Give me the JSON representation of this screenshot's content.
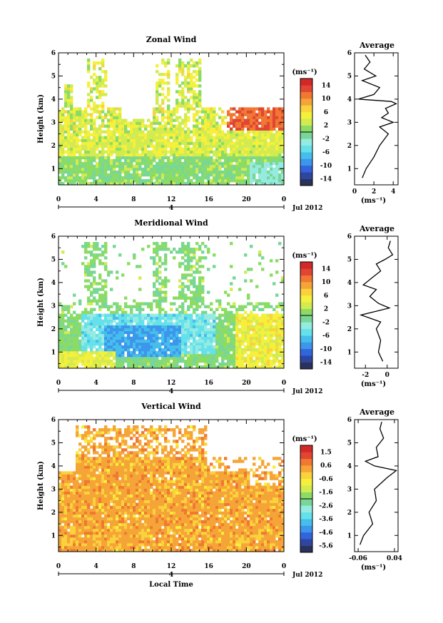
{
  "figure": {
    "month_label": "Jul 2012",
    "day_label": "4",
    "xlabel_bottom": "Local Time",
    "colorbar_unit": "(ms⁻¹)",
    "avg_unit": "(ms⁻¹)",
    "ylabel": "Height (km)",
    "avg_title": "Average"
  },
  "chart_data": [
    {
      "type": "heatmap",
      "title": "Zonal Wind",
      "xlabel": "",
      "ylabel": "Height (km)",
      "xlim": [
        0,
        24
      ],
      "ylim": [
        0.3,
        6
      ],
      "xticks": [
        "0",
        "4",
        "8",
        "12",
        "16",
        "20",
        "0"
      ],
      "yticks": [
        "1",
        "2",
        "3",
        "4",
        "5",
        "6"
      ],
      "colorbar": {
        "ticks": [
          "14",
          "10",
          "6",
          "2",
          "-2",
          "-6",
          "-10",
          "-14"
        ],
        "range": [
          -16,
          16
        ]
      },
      "avg_profile": {
        "title": "Average",
        "xlim": [
          0,
          4.5
        ],
        "xticks": [
          "0",
          "2",
          "4"
        ],
        "height_km": [
          0.6,
          1.0,
          1.5,
          2.0,
          2.5,
          2.8,
          3.0,
          3.2,
          3.4,
          3.6,
          3.8,
          3.9,
          4.0,
          4.2,
          4.5,
          4.8,
          5.0,
          5.3,
          5.6,
          5.9
        ],
        "value_ms": [
          0.8,
          1.2,
          2.0,
          2.6,
          3.5,
          2.6,
          4.0,
          2.8,
          3.5,
          3.2,
          4.3,
          3.8,
          0.4,
          2.0,
          2.6,
          0.8,
          2.2,
          1.0,
          1.6,
          1.1
        ]
      }
    },
    {
      "type": "heatmap",
      "title": "Meridional Wind",
      "xlabel": "",
      "ylabel": "Height (km)",
      "xlim": [
        0,
        24
      ],
      "ylim": [
        0.3,
        6
      ],
      "xticks": [
        "0",
        "4",
        "8",
        "12",
        "16",
        "20",
        "0"
      ],
      "yticks": [
        "1",
        "2",
        "3",
        "4",
        "5",
        "6"
      ],
      "colorbar": {
        "ticks": [
          "14",
          "10",
          "6",
          "2",
          "-2",
          "-6",
          "-10",
          "-14"
        ],
        "range": [
          -16,
          16
        ]
      },
      "avg_profile": {
        "title": "Average",
        "xlim": [
          -3,
          1
        ],
        "xticks": [
          "-2",
          "0"
        ],
        "height_km": [
          0.6,
          1.0,
          1.5,
          2.0,
          2.3,
          2.6,
          2.9,
          3.1,
          3.4,
          3.7,
          3.9,
          4.2,
          4.5,
          4.8,
          5.0,
          5.2,
          5.5,
          5.8
        ],
        "value_ms": [
          -0.4,
          -0.8,
          -0.6,
          -1.0,
          -0.6,
          -2.4,
          0.2,
          -0.8,
          -1.6,
          -1.0,
          -2.2,
          -1.4,
          -0.6,
          -1.0,
          -0.2,
          0.5,
          0.1,
          0.3
        ]
      }
    },
    {
      "type": "heatmap",
      "title": "Vertical Wind",
      "xlabel": "Local Time",
      "ylabel": "Height (km)",
      "xlim": [
        0,
        24
      ],
      "ylim": [
        0.3,
        6
      ],
      "xticks": [
        "0",
        "4",
        "8",
        "12",
        "16",
        "20",
        "0"
      ],
      "yticks": [
        "1",
        "2",
        "3",
        "4",
        "5",
        "6"
      ],
      "colorbar": {
        "ticks": [
          "1.5",
          "0.6",
          "-0.6",
          "-1.6",
          "-2.6",
          "-3.6",
          "-4.6",
          "-5.6"
        ],
        "range": [
          -6,
          2
        ]
      },
      "avg_profile": {
        "title": "Average",
        "xlim": [
          -0.07,
          0.05
        ],
        "xticks": [
          "-0.06",
          "0.04"
        ],
        "height_km": [
          0.6,
          1.0,
          1.5,
          2.0,
          2.5,
          3.0,
          3.5,
          3.8,
          4.0,
          4.2,
          4.4,
          4.8,
          5.2,
          5.6,
          5.9
        ],
        "value_ms": [
          -0.055,
          -0.045,
          -0.02,
          -0.03,
          -0.01,
          -0.015,
          0.02,
          0.045,
          -0.015,
          -0.04,
          -0.005,
          -0.01,
          0.01,
          0.0,
          0.005
        ]
      }
    }
  ]
}
